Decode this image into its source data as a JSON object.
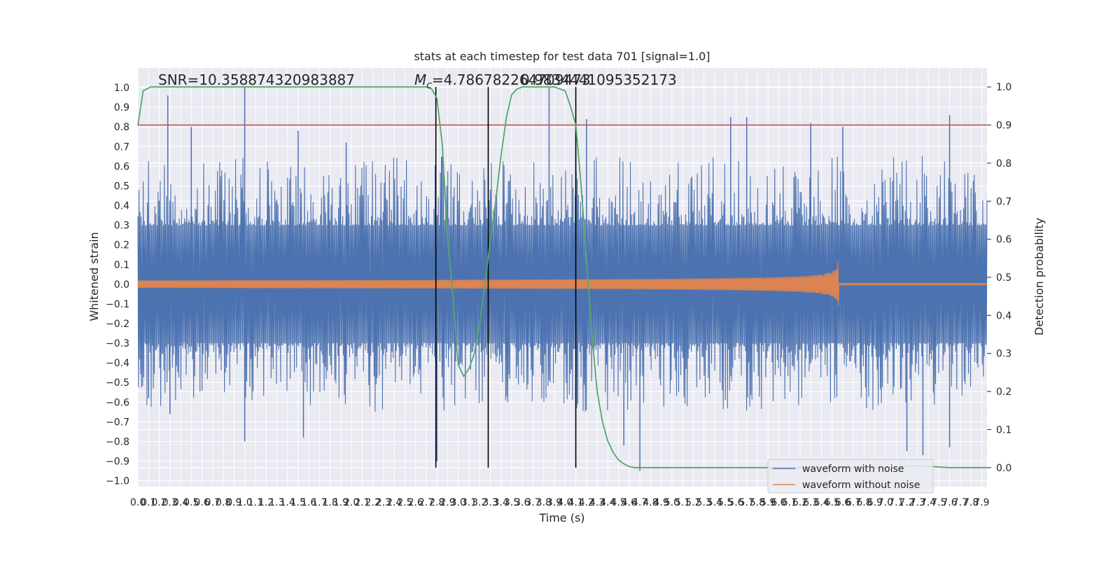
{
  "chart_data": {
    "type": "line",
    "title": "stats at each timestep for test data 701 [signal=1.0]",
    "xlabel": "Time (s)",
    "ylabel_left": "Whitened strain",
    "ylabel_right": "Detection probability",
    "xlim": [
      0.0,
      7.95
    ],
    "ylim_left": [
      -1.03,
      1.1
    ],
    "ylim_right": [
      -0.05,
      1.05
    ],
    "x_tick_step": 0.1,
    "x_tick_count": 80,
    "y_left_ticks": [
      -1.0,
      -0.9,
      -0.8,
      -0.7,
      -0.6,
      -0.5,
      -0.4,
      -0.3,
      -0.2,
      -0.1,
      0.0,
      0.1,
      0.2,
      0.3,
      0.4,
      0.5,
      0.6,
      0.7,
      0.8,
      0.9,
      1.0
    ],
    "y_right_ticks": [
      0.0,
      0.1,
      0.2,
      0.3,
      0.4,
      0.5,
      0.6,
      0.7,
      0.8,
      0.9,
      1.0
    ],
    "grid": true,
    "background_color": "#eaeaf2",
    "annotations": {
      "snr": "SNR=10.358874320983887",
      "mc_symbol": "M",
      "mc_subscript": "c",
      "mc_value": "=4.786782264709473",
      "overlap_value": "0.9834441095352173"
    },
    "noisy_waveform": {
      "name": "waveform with noise",
      "color": "#4c72b0",
      "spikes_up": [
        [
          0.28,
          0.96
        ],
        [
          0.5,
          0.8
        ],
        [
          1.0,
          1.0
        ],
        [
          1.5,
          0.78
        ],
        [
          1.95,
          0.72
        ],
        [
          2.85,
          0.65
        ],
        [
          3.85,
          1.0
        ],
        [
          4.1,
          0.82
        ],
        [
          4.2,
          0.84
        ],
        [
          5.55,
          0.85
        ],
        [
          5.7,
          0.85
        ],
        [
          6.3,
          0.82
        ],
        [
          6.6,
          0.8
        ],
        [
          7.6,
          0.86
        ]
      ],
      "spikes_down": [
        [
          0.1,
          -0.58
        ],
        [
          0.3,
          -0.66
        ],
        [
          1.0,
          -0.8
        ],
        [
          1.55,
          -0.78
        ],
        [
          2.8,
          -0.9
        ],
        [
          4.55,
          -0.82
        ],
        [
          4.7,
          -0.95
        ],
        [
          7.2,
          -0.85
        ],
        [
          7.35,
          -0.87
        ],
        [
          7.6,
          -0.83
        ]
      ]
    },
    "clean_waveform": {
      "name": "waveform without noise",
      "color": "#dd8452",
      "merger_time": 6.56,
      "peak_positive": 0.29,
      "peak_negative": -0.24,
      "start_amplitude": 0.02,
      "ringdown_amplitude": 0.005
    },
    "detection_probability": {
      "color": "#55a868",
      "x": [
        0.0,
        0.05,
        0.12,
        0.25,
        0.5,
        1.0,
        1.5,
        2.0,
        2.5,
        2.7,
        2.75,
        2.8,
        2.85,
        2.9,
        2.95,
        3.0,
        3.05,
        3.1,
        3.15,
        3.2,
        3.25,
        3.3,
        3.35,
        3.4,
        3.45,
        3.5,
        3.55,
        3.6,
        3.65,
        3.7,
        3.75,
        3.8,
        3.9,
        4.0,
        4.05,
        4.1,
        4.15,
        4.2,
        4.25,
        4.3,
        4.35,
        4.4,
        4.45,
        4.5,
        4.55,
        4.6,
        4.65,
        4.7,
        4.75,
        5.0,
        6.0,
        7.0,
        7.3,
        7.6,
        7.95
      ],
      "y": [
        0.9,
        0.99,
        1.0,
        1.0,
        1.0,
        1.0,
        1.0,
        1.0,
        1.0,
        1.0,
        0.995,
        0.97,
        0.85,
        0.6,
        0.45,
        0.27,
        0.24,
        0.26,
        0.3,
        0.38,
        0.48,
        0.6,
        0.7,
        0.82,
        0.92,
        0.98,
        0.995,
        1.0,
        1.0,
        1.0,
        1.0,
        1.0,
        1.0,
        0.99,
        0.95,
        0.9,
        0.74,
        0.55,
        0.35,
        0.2,
        0.12,
        0.07,
        0.04,
        0.02,
        0.01,
        0.003,
        0.0,
        0.0,
        0.0,
        0.0,
        0.0,
        0.0,
        0.005,
        0.0,
        0.0
      ]
    },
    "threshold_line": {
      "value": 0.9,
      "color": "#c44e52"
    },
    "vertical_markers": {
      "x": [
        2.79,
        3.28,
        4.1
      ],
      "color": "#000000"
    },
    "legend": {
      "placement": "lower-right",
      "entries": [
        {
          "label": "waveform with noise",
          "color": "#4c72b0"
        },
        {
          "label": "waveform without noise",
          "color": "#dd8452"
        }
      ]
    }
  }
}
